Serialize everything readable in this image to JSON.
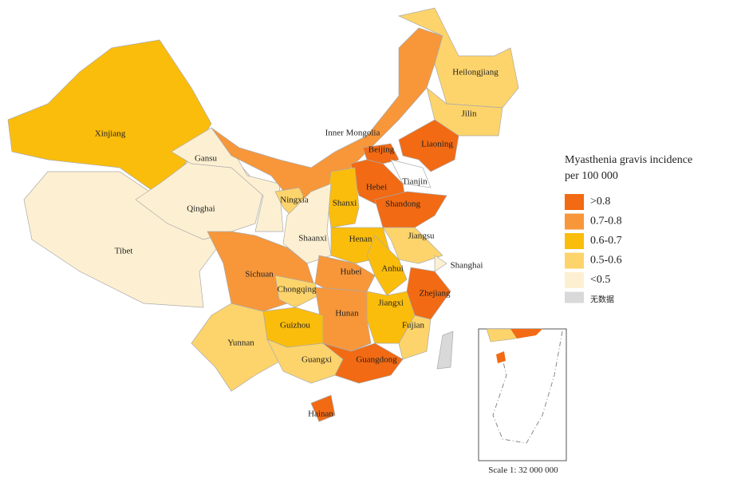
{
  "map": {
    "provinces": [
      {
        "name": "Xinjiang",
        "class": 2
      },
      {
        "name": "Tibet",
        "class": 4
      },
      {
        "name": "Qinghai",
        "class": 4
      },
      {
        "name": "Gansu",
        "class": 4
      },
      {
        "name": "Inner Mongolia",
        "class": 1
      },
      {
        "name": "Heilongjiang",
        "class": 3
      },
      {
        "name": "Jilin",
        "class": 3
      },
      {
        "name": "Liaoning",
        "class": 0
      },
      {
        "name": "Beijing",
        "class": 0
      },
      {
        "name": "Tianjin",
        "class": null
      },
      {
        "name": "Hebei",
        "class": 0
      },
      {
        "name": "Shanxi",
        "class": 2
      },
      {
        "name": "Shandong",
        "class": 0
      },
      {
        "name": "Ningxia",
        "class": 3
      },
      {
        "name": "Shaanxi",
        "class": 4
      },
      {
        "name": "Henan",
        "class": 2
      },
      {
        "name": "Jiangsu",
        "class": 3
      },
      {
        "name": "Anhui",
        "class": 2
      },
      {
        "name": "Shanghai",
        "class": 4
      },
      {
        "name": "Hubei",
        "class": 1
      },
      {
        "name": "Sichuan",
        "class": 1
      },
      {
        "name": "Chongqing",
        "class": 3
      },
      {
        "name": "Zhejiang",
        "class": 0
      },
      {
        "name": "Jiangxi",
        "class": 2
      },
      {
        "name": "Fujian",
        "class": 3
      },
      {
        "name": "Hunan",
        "class": 1
      },
      {
        "name": "Guizhou",
        "class": 2
      },
      {
        "name": "Yunnan",
        "class": 3
      },
      {
        "name": "Guangxi",
        "class": 3
      },
      {
        "name": "Guangdong",
        "class": 0
      },
      {
        "name": "Hainan",
        "class": 0
      },
      {
        "name": null,
        "class": 5
      }
    ]
  },
  "legend": {
    "title": [
      "Myasthenia gravis incidence",
      "per 100 000"
    ],
    "items": [
      {
        "label": ">0.8",
        "color": "#f26a13"
      },
      {
        "label": "0.7-0.8",
        "color": "#f7973a"
      },
      {
        "label": "0.6-0.7",
        "color": "#fbbd0c"
      },
      {
        "label": "0.5-0.6",
        "color": "#fdd46b"
      },
      {
        "label": "<0.5",
        "color": "#fdf0d2"
      },
      {
        "label": "无数据",
        "color": "#d9d9d9"
      }
    ]
  },
  "scale": "Scale 1: 32 000 000"
}
